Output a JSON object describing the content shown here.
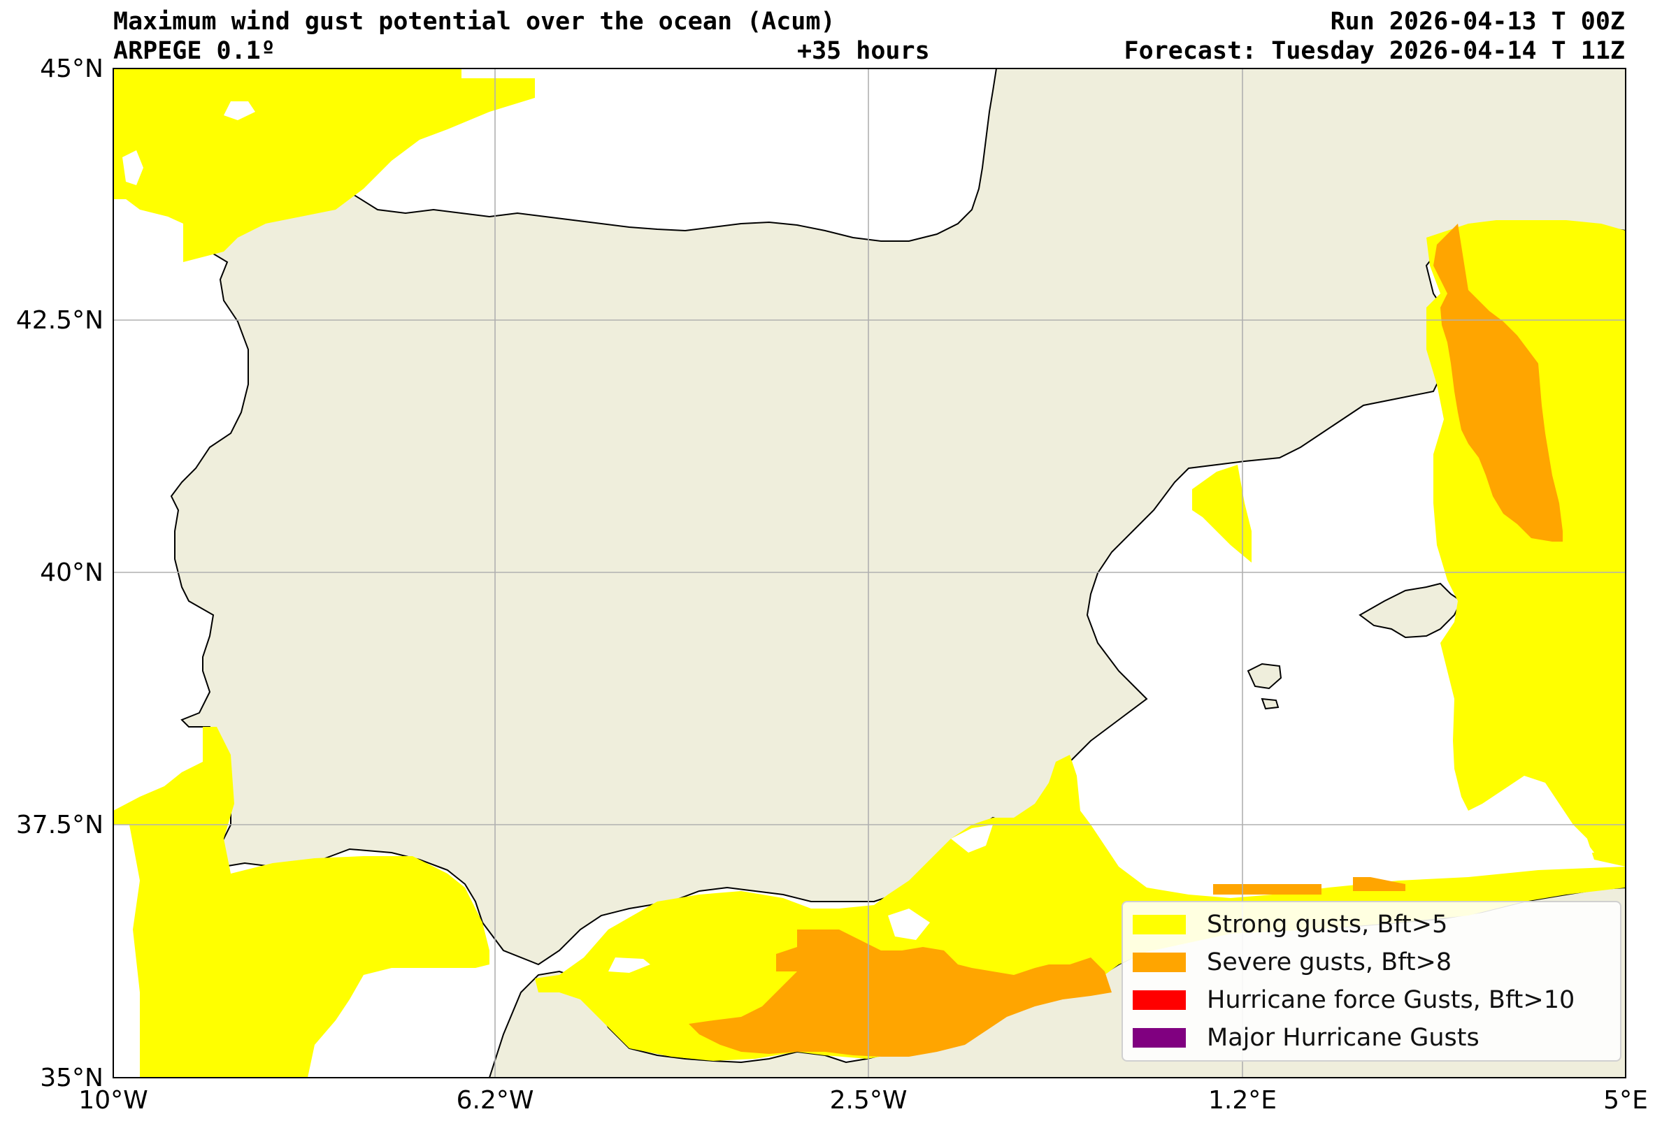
{
  "header": {
    "title": "Maximum wind gust potential over the ocean (Acum)",
    "model": "ARPEGE 0.1º",
    "lead": "+35 hours",
    "run": "Run 2026-04-13 T 00Z",
    "forecast": "Forecast: Tuesday 2026-04-14 T 11Z"
  },
  "axes": {
    "lat_labels": [
      "45°N",
      "42.5°N",
      "40°N",
      "37.5°N",
      "35°N"
    ],
    "lon_labels": [
      "10°W",
      "6.2°W",
      "2.5°W",
      "1.2°E",
      "5°E"
    ]
  },
  "legend": {
    "items": [
      {
        "label": "Strong gusts, Bft>5",
        "color": "#ffff00"
      },
      {
        "label": "Severe gusts, Bft>8",
        "color": "#ffa500"
      },
      {
        "label": "Hurricane force Gusts, Bft>10",
        "color": "#ff0000"
      },
      {
        "label": "Major Hurricane Gusts",
        "color": "#800080"
      }
    ]
  },
  "colors": {
    "land": "#efeedc",
    "ocean": "#ffffff",
    "strong": "#ffff00",
    "severe": "#ffa500",
    "coast": "#000000",
    "grid": "#b0b0b0"
  }
}
